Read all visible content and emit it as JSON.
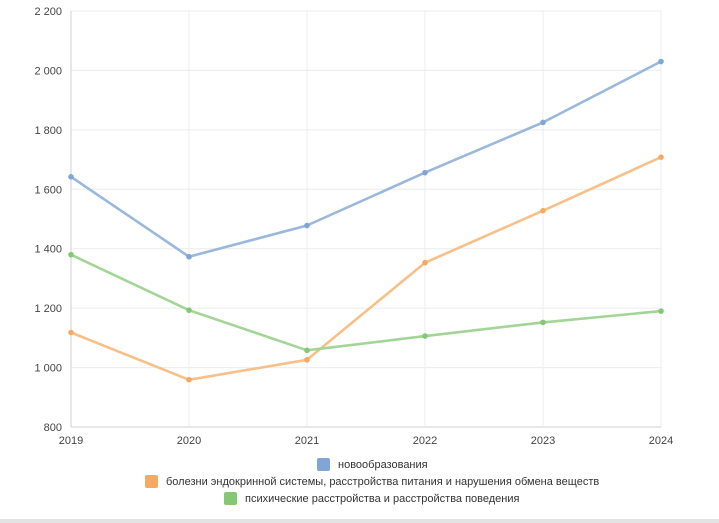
{
  "chart_data": {
    "type": "line",
    "x": [
      "2019",
      "2020",
      "2021",
      "2022",
      "2023",
      "2024"
    ],
    "y_ticks": [
      "800",
      "1 000",
      "1 200",
      "1 400",
      "1 600",
      "1 800",
      "2 000",
      "2 200"
    ],
    "ylim": [
      800,
      2200
    ],
    "grid": true,
    "legend_position": "bottom",
    "series": [
      {
        "name": "новообразования",
        "color": "#9ab8db",
        "marker_color": "#7fa6d6",
        "values": [
          1642,
          1373,
          1478,
          1656,
          1825,
          2030
        ]
      },
      {
        "name": "болезни эндокринной системы, расстройства питания и нарушения обмена веществ",
        "color": "#f8c089",
        "marker_color": "#f6a960",
        "values": [
          1118,
          959,
          1026,
          1353,
          1528,
          1708
        ]
      },
      {
        "name": "психические расстройства и расстройства поведения",
        "color": "#a3d597",
        "marker_color": "#84c873",
        "values": [
          1380,
          1193,
          1058,
          1106,
          1152,
          1190
        ]
      }
    ]
  }
}
